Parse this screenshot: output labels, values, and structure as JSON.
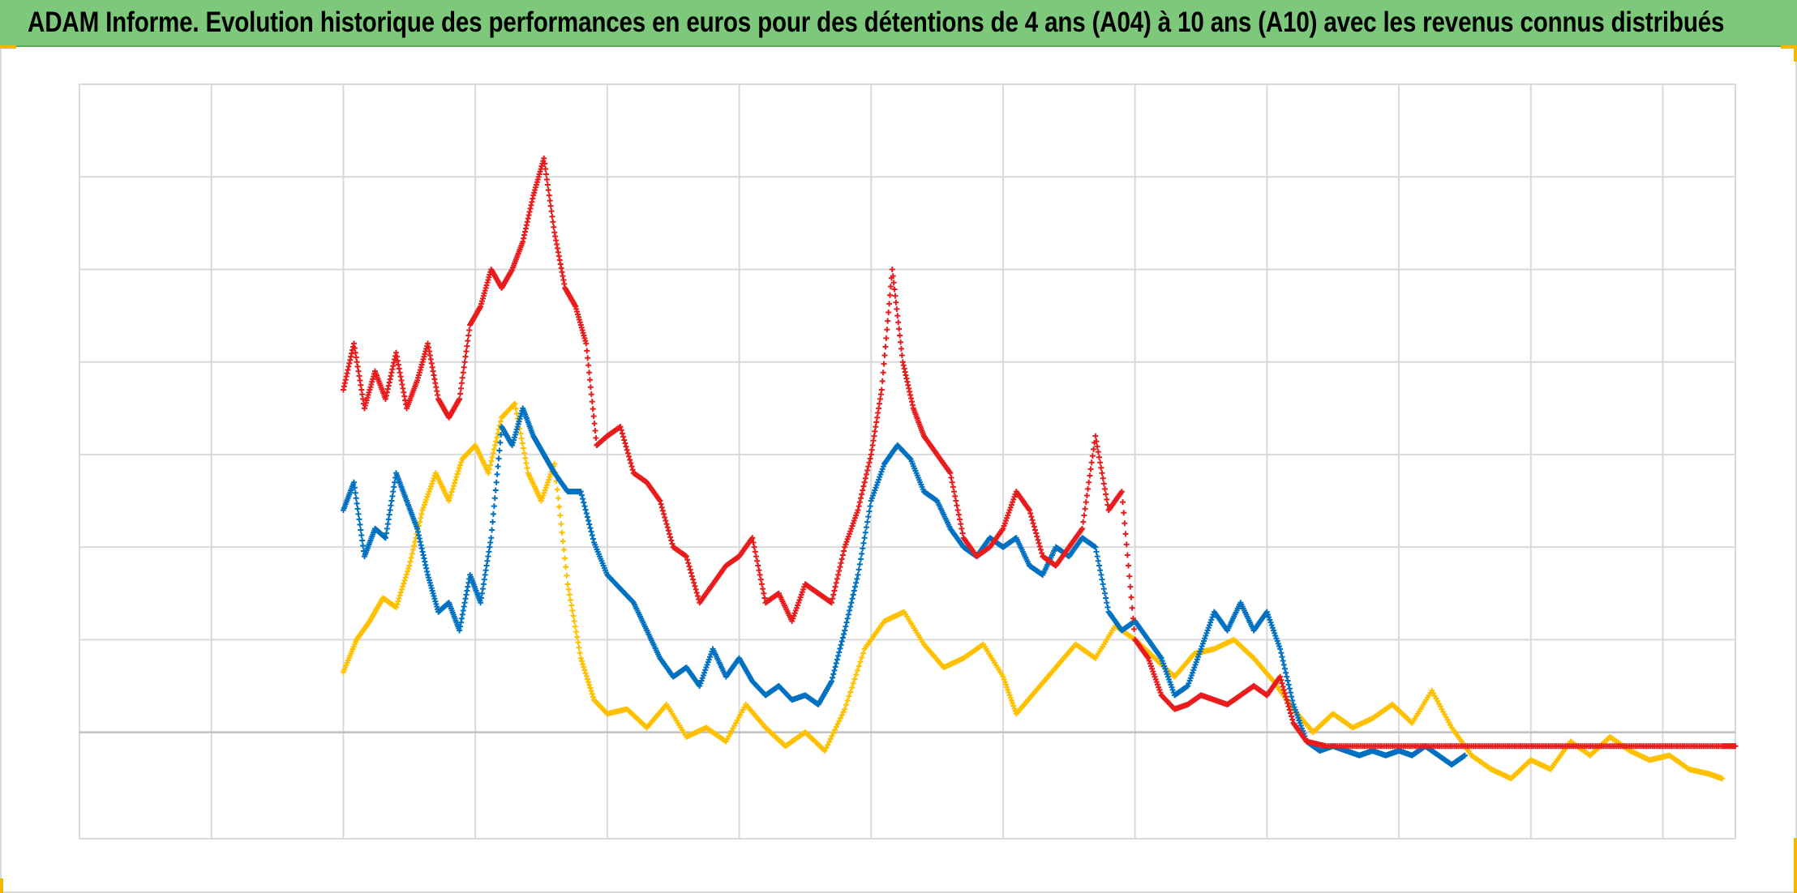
{
  "header": {
    "title": "ADAM Informe. Evolution historique des performances en euros pour des détentions de 4 ans (A04) à 10 ans (A10) avec les revenus connus distribués"
  },
  "colors": {
    "title_background": "#7dc87a",
    "grid": "#d9d9d9",
    "zero_line": "#bfbfbf",
    "corner_marks": "#f2b800"
  },
  "chart_data": {
    "type": "scatter",
    "marker": "plus",
    "grid": true,
    "legend": "none",
    "tick_labels_visible": false,
    "xlim": [
      0,
      12.55
    ],
    "ylim": [
      -1.15,
      7
    ],
    "x_gridlines": [
      0,
      1,
      2,
      3,
      4,
      5,
      6,
      7,
      8,
      9,
      10,
      11,
      12
    ],
    "y_gridlines": [
      -1.15,
      0,
      1,
      2,
      3,
      4,
      5,
      6,
      7
    ],
    "zero_line": 0,
    "series": [
      {
        "color": "#ffc000",
        "points": [
          [
            2.0,
            0.65
          ],
          [
            2.1,
            1.0
          ],
          [
            2.2,
            1.2
          ],
          [
            2.3,
            1.45
          ],
          [
            2.4,
            1.35
          ],
          [
            2.5,
            1.8
          ],
          [
            2.6,
            2.4
          ],
          [
            2.7,
            2.8
          ],
          [
            2.8,
            2.5
          ],
          [
            2.9,
            2.95
          ],
          [
            3.0,
            3.1
          ],
          [
            3.1,
            2.8
          ],
          [
            3.2,
            3.4
          ],
          [
            3.3,
            3.55
          ],
          [
            3.4,
            2.8
          ],
          [
            3.5,
            2.5
          ],
          [
            3.6,
            2.9
          ],
          [
            3.7,
            1.6
          ],
          [
            3.8,
            0.8
          ],
          [
            3.9,
            0.35
          ],
          [
            4.0,
            0.2
          ],
          [
            4.15,
            0.25
          ],
          [
            4.3,
            0.05
          ],
          [
            4.45,
            0.3
          ],
          [
            4.6,
            -0.05
          ],
          [
            4.75,
            0.05
          ],
          [
            4.9,
            -0.1
          ],
          [
            5.05,
            0.3
          ],
          [
            5.2,
            0.05
          ],
          [
            5.35,
            -0.15
          ],
          [
            5.5,
            0.0
          ],
          [
            5.65,
            -0.2
          ],
          [
            5.8,
            0.25
          ],
          [
            5.95,
            0.9
          ],
          [
            6.1,
            1.2
          ],
          [
            6.25,
            1.3
          ],
          [
            6.4,
            0.95
          ],
          [
            6.55,
            0.7
          ],
          [
            6.7,
            0.8
          ],
          [
            6.85,
            0.95
          ],
          [
            7.0,
            0.6
          ],
          [
            7.1,
            0.2
          ],
          [
            7.25,
            0.45
          ],
          [
            7.4,
            0.7
          ],
          [
            7.55,
            0.95
          ],
          [
            7.7,
            0.8
          ],
          [
            7.85,
            1.15
          ],
          [
            8.0,
            1.0
          ],
          [
            8.15,
            0.8
          ],
          [
            8.3,
            0.6
          ],
          [
            8.45,
            0.85
          ],
          [
            8.6,
            0.9
          ],
          [
            8.75,
            1.0
          ],
          [
            8.9,
            0.8
          ],
          [
            9.05,
            0.55
          ],
          [
            9.2,
            0.25
          ],
          [
            9.35,
            0.0
          ],
          [
            9.5,
            0.2
          ],
          [
            9.65,
            0.05
          ],
          [
            9.8,
            0.15
          ],
          [
            9.95,
            0.3
          ],
          [
            10.1,
            0.1
          ],
          [
            10.25,
            0.45
          ],
          [
            10.4,
            0.05
          ],
          [
            10.55,
            -0.25
          ],
          [
            10.7,
            -0.4
          ],
          [
            10.85,
            -0.5
          ],
          [
            11.0,
            -0.3
          ],
          [
            11.15,
            -0.4
          ],
          [
            11.3,
            -0.1
          ],
          [
            11.45,
            -0.25
          ],
          [
            11.6,
            -0.05
          ],
          [
            11.75,
            -0.2
          ],
          [
            11.9,
            -0.3
          ],
          [
            12.05,
            -0.25
          ],
          [
            12.2,
            -0.4
          ],
          [
            12.35,
            -0.45
          ],
          [
            12.45,
            -0.5
          ]
        ]
      },
      {
        "color": "#0070c0",
        "points": [
          [
            2.0,
            2.4
          ],
          [
            2.08,
            2.7
          ],
          [
            2.16,
            1.9
          ],
          [
            2.24,
            2.2
          ],
          [
            2.32,
            2.1
          ],
          [
            2.4,
            2.8
          ],
          [
            2.48,
            2.5
          ],
          [
            2.56,
            2.2
          ],
          [
            2.64,
            1.7
          ],
          [
            2.72,
            1.3
          ],
          [
            2.8,
            1.4
          ],
          [
            2.88,
            1.1
          ],
          [
            2.96,
            1.7
          ],
          [
            3.04,
            1.4
          ],
          [
            3.12,
            2.1
          ],
          [
            3.2,
            3.3
          ],
          [
            3.28,
            3.1
          ],
          [
            3.36,
            3.5
          ],
          [
            3.44,
            3.2
          ],
          [
            3.52,
            3.0
          ],
          [
            3.6,
            2.8
          ],
          [
            3.7,
            2.6
          ],
          [
            3.8,
            2.6
          ],
          [
            3.9,
            2.05
          ],
          [
            4.0,
            1.7
          ],
          [
            4.1,
            1.55
          ],
          [
            4.2,
            1.4
          ],
          [
            4.3,
            1.1
          ],
          [
            4.4,
            0.8
          ],
          [
            4.5,
            0.6
          ],
          [
            4.6,
            0.7
          ],
          [
            4.7,
            0.5
          ],
          [
            4.8,
            0.9
          ],
          [
            4.9,
            0.6
          ],
          [
            5.0,
            0.8
          ],
          [
            5.1,
            0.55
          ],
          [
            5.2,
            0.4
          ],
          [
            5.3,
            0.5
          ],
          [
            5.4,
            0.35
          ],
          [
            5.5,
            0.4
          ],
          [
            5.6,
            0.3
          ],
          [
            5.7,
            0.55
          ],
          [
            5.8,
            1.1
          ],
          [
            5.9,
            1.7
          ],
          [
            6.0,
            2.5
          ],
          [
            6.1,
            2.9
          ],
          [
            6.2,
            3.1
          ],
          [
            6.3,
            2.95
          ],
          [
            6.4,
            2.6
          ],
          [
            6.5,
            2.5
          ],
          [
            6.6,
            2.2
          ],
          [
            6.7,
            2.0
          ],
          [
            6.8,
            1.9
          ],
          [
            6.9,
            2.1
          ],
          [
            7.0,
            2.0
          ],
          [
            7.1,
            2.1
          ],
          [
            7.2,
            1.8
          ],
          [
            7.3,
            1.7
          ],
          [
            7.4,
            2.0
          ],
          [
            7.5,
            1.9
          ],
          [
            7.6,
            2.1
          ],
          [
            7.7,
            2.0
          ],
          [
            7.8,
            1.3
          ],
          [
            7.9,
            1.1
          ],
          [
            8.0,
            1.2
          ],
          [
            8.1,
            1.0
          ],
          [
            8.2,
            0.8
          ],
          [
            8.3,
            0.4
          ],
          [
            8.4,
            0.5
          ],
          [
            8.5,
            0.9
          ],
          [
            8.6,
            1.3
          ],
          [
            8.7,
            1.1
          ],
          [
            8.8,
            1.4
          ],
          [
            8.9,
            1.1
          ],
          [
            9.0,
            1.3
          ],
          [
            9.1,
            0.9
          ],
          [
            9.2,
            0.3
          ],
          [
            9.3,
            -0.1
          ],
          [
            9.4,
            -0.2
          ],
          [
            9.5,
            -0.15
          ],
          [
            9.6,
            -0.2
          ],
          [
            9.7,
            -0.25
          ],
          [
            9.8,
            -0.2
          ],
          [
            9.9,
            -0.25
          ],
          [
            10.0,
            -0.2
          ],
          [
            10.1,
            -0.25
          ],
          [
            10.2,
            -0.15
          ],
          [
            10.3,
            -0.25
          ],
          [
            10.4,
            -0.35
          ],
          [
            10.5,
            -0.25
          ]
        ]
      },
      {
        "color": "#e81c1c",
        "points": [
          [
            2.0,
            3.7
          ],
          [
            2.08,
            4.2
          ],
          [
            2.16,
            3.5
          ],
          [
            2.24,
            3.9
          ],
          [
            2.32,
            3.6
          ],
          [
            2.4,
            4.1
          ],
          [
            2.48,
            3.5
          ],
          [
            2.56,
            3.8
          ],
          [
            2.64,
            4.2
          ],
          [
            2.72,
            3.6
          ],
          [
            2.8,
            3.4
          ],
          [
            2.88,
            3.6
          ],
          [
            2.96,
            4.4
          ],
          [
            3.04,
            4.6
          ],
          [
            3.12,
            5.0
          ],
          [
            3.2,
            4.8
          ],
          [
            3.28,
            5.0
          ],
          [
            3.36,
            5.3
          ],
          [
            3.44,
            5.8
          ],
          [
            3.52,
            6.2
          ],
          [
            3.6,
            5.4
          ],
          [
            3.68,
            4.8
          ],
          [
            3.76,
            4.6
          ],
          [
            3.84,
            4.2
          ],
          [
            3.92,
            3.1
          ],
          [
            4.0,
            3.2
          ],
          [
            4.1,
            3.3
          ],
          [
            4.2,
            2.8
          ],
          [
            4.3,
            2.7
          ],
          [
            4.4,
            2.5
          ],
          [
            4.5,
            2.0
          ],
          [
            4.6,
            1.9
          ],
          [
            4.7,
            1.4
          ],
          [
            4.8,
            1.6
          ],
          [
            4.9,
            1.8
          ],
          [
            5.0,
            1.9
          ],
          [
            5.1,
            2.1
          ],
          [
            5.2,
            1.4
          ],
          [
            5.3,
            1.5
          ],
          [
            5.4,
            1.2
          ],
          [
            5.5,
            1.6
          ],
          [
            5.6,
            1.5
          ],
          [
            5.7,
            1.4
          ],
          [
            5.8,
            2.0
          ],
          [
            5.9,
            2.4
          ],
          [
            6.0,
            3.0
          ],
          [
            6.08,
            3.7
          ],
          [
            6.16,
            5.0
          ],
          [
            6.24,
            4.0
          ],
          [
            6.32,
            3.5
          ],
          [
            6.4,
            3.2
          ],
          [
            6.5,
            3.0
          ],
          [
            6.6,
            2.8
          ],
          [
            6.7,
            2.1
          ],
          [
            6.8,
            1.9
          ],
          [
            6.9,
            2.0
          ],
          [
            7.0,
            2.2
          ],
          [
            7.1,
            2.6
          ],
          [
            7.2,
            2.4
          ],
          [
            7.3,
            1.9
          ],
          [
            7.4,
            1.8
          ],
          [
            7.5,
            2.0
          ],
          [
            7.6,
            2.2
          ],
          [
            7.7,
            3.2
          ],
          [
            7.8,
            2.4
          ],
          [
            7.9,
            2.6
          ],
          [
            8.0,
            1.0
          ],
          [
            8.1,
            0.8
          ],
          [
            8.2,
            0.4
          ],
          [
            8.3,
            0.25
          ],
          [
            8.4,
            0.3
          ],
          [
            8.5,
            0.4
          ],
          [
            8.6,
            0.35
          ],
          [
            8.7,
            0.3
          ],
          [
            8.8,
            0.4
          ],
          [
            8.9,
            0.5
          ],
          [
            9.0,
            0.4
          ],
          [
            9.1,
            0.6
          ],
          [
            9.2,
            0.1
          ],
          [
            9.3,
            -0.1
          ],
          [
            9.45,
            -0.15
          ],
          [
            9.65,
            -0.15
          ],
          [
            9.85,
            -0.15
          ],
          [
            10.05,
            -0.15
          ],
          [
            10.25,
            -0.15
          ],
          [
            10.45,
            -0.15
          ],
          [
            10.65,
            -0.15
          ],
          [
            10.85,
            -0.15
          ],
          [
            11.05,
            -0.15
          ],
          [
            11.25,
            -0.15
          ],
          [
            11.45,
            -0.15
          ],
          [
            11.65,
            -0.15
          ],
          [
            11.85,
            -0.15
          ],
          [
            12.05,
            -0.15
          ],
          [
            12.25,
            -0.15
          ],
          [
            12.45,
            -0.15
          ],
          [
            12.55,
            -0.15
          ]
        ]
      }
    ]
  }
}
